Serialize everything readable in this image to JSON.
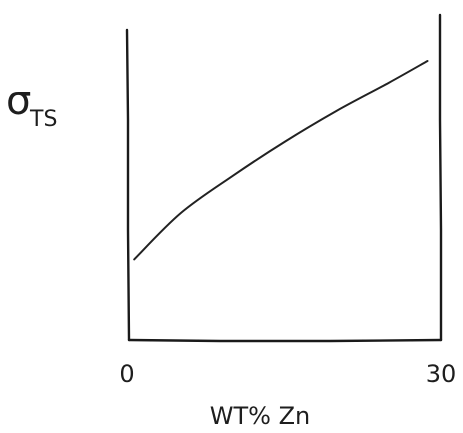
{
  "chart_data": {
    "type": "line",
    "title": "",
    "ylabel": "σTS",
    "ylabel_main": "σ",
    "ylabel_sub": "TS",
    "xlabel": "WT% Zn",
    "x_tick_labels": [
      "0",
      "30"
    ],
    "xlim": [
      0,
      30
    ],
    "ylim": [
      0,
      100
    ],
    "grid": false,
    "legend": "none",
    "style": "hand-drawn sketch",
    "series": [
      {
        "x": [
          0.5,
          5,
          10,
          15,
          20,
          25,
          28.7
        ],
        "y": [
          26,
          41,
          53,
          64,
          74,
          83,
          90
        ]
      }
    ]
  }
}
